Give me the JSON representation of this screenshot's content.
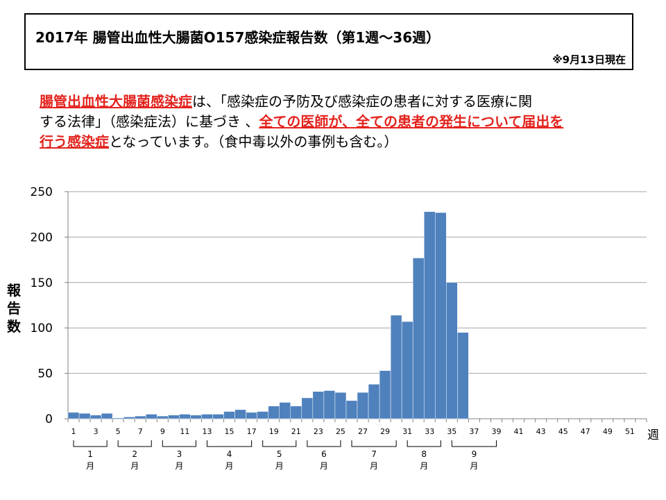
{
  "header": {
    "title": "2017年  腸管出血性大腸菌O157感染症報告数（第1週～36週）",
    "date_note": "※9月13日現在"
  },
  "description": {
    "line1_hl": "腸管出血性大腸菌感染症",
    "line1_rest": "は、「感染症の予防及び感染症の患者に対する医療に関",
    "line2_pre": "する法律」（感染症法）に基づき 、",
    "line2_hl": "全ての医師が、全ての患者の発生について届出を",
    "line3_hl": "行う感染症",
    "line3_rest": "となっています。（食中毒以外の事例も含む。）"
  },
  "colors": {
    "bar": "#4f81bd",
    "highlight": "#e3231d",
    "grid": "#a6a6a6"
  },
  "chart_data": {
    "type": "bar",
    "ylabel": "報告数",
    "xlabel": "週",
    "ylim": [
      0,
      250
    ],
    "yticks": [
      0,
      50,
      100,
      150,
      200,
      250
    ],
    "grid": true,
    "x_tick_labels": [
      "1",
      "3",
      "5",
      "7",
      "9",
      "11",
      "13",
      "15",
      "17",
      "19",
      "21",
      "23",
      "25",
      "27",
      "29",
      "31",
      "33",
      "35",
      "37",
      "39",
      "41",
      "43",
      "45",
      "47",
      "49",
      "51"
    ],
    "x_axis_unit": "週",
    "weeks": [
      1,
      2,
      3,
      4,
      5,
      6,
      7,
      8,
      9,
      10,
      11,
      12,
      13,
      14,
      15,
      16,
      17,
      18,
      19,
      20,
      21,
      22,
      23,
      24,
      25,
      26,
      27,
      28,
      29,
      30,
      31,
      32,
      33,
      34,
      35,
      36
    ],
    "values": [
      7,
      6,
      4,
      6,
      1,
      2,
      3,
      5,
      3,
      4,
      5,
      4,
      5,
      5,
      8,
      10,
      7,
      8,
      14,
      18,
      14,
      23,
      30,
      31,
      29,
      20,
      29,
      38,
      53,
      114,
      107,
      177,
      228,
      227,
      150,
      95
    ],
    "total_weeks": 52,
    "months": [
      {
        "label": "1\n月",
        "start_week": 1,
        "end_week": 4
      },
      {
        "label": "2\n月",
        "start_week": 5,
        "end_week": 8
      },
      {
        "label": "3\n月",
        "start_week": 9,
        "end_week": 12
      },
      {
        "label": "4\n月",
        "start_week": 13,
        "end_week": 17
      },
      {
        "label": "5\n月",
        "start_week": 18,
        "end_week": 21
      },
      {
        "label": "6\n月",
        "start_week": 22,
        "end_week": 25
      },
      {
        "label": "7\n月",
        "start_week": 26,
        "end_week": 30
      },
      {
        "label": "8\n月",
        "start_week": 31,
        "end_week": 34
      },
      {
        "label": "9\n月",
        "start_week": 35,
        "end_week": 39
      }
    ]
  }
}
